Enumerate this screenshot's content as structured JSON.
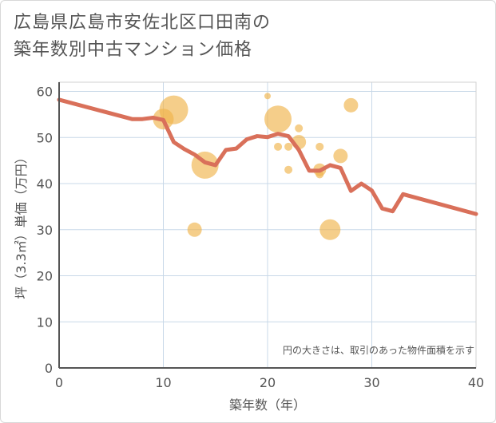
{
  "title_line1": "広島県広島市安佐北区口田南の",
  "title_line2": "築年数別中古マンション価格",
  "chart_data": {
    "type": "scatter+line",
    "xlabel": "築年数（年）",
    "ylabel": "坪（3.3㎡）単価（万円）",
    "xlim": [
      0,
      40
    ],
    "ylim": [
      0,
      62
    ],
    "xticks": [
      0,
      10,
      20,
      30,
      40
    ],
    "yticks": [
      0,
      10,
      20,
      30,
      40,
      50,
      60
    ],
    "grid": true,
    "note": "円の大きさは、取引のあった物件面積を示す",
    "colors": {
      "bubble": "#f0b44c",
      "line": "#d9705a",
      "grid": "#c8d8e8",
      "axis": "#555555"
    },
    "bubbles": [
      {
        "x": 10,
        "y": 54,
        "size": 13
      },
      {
        "x": 11,
        "y": 56,
        "size": 18
      },
      {
        "x": 13,
        "y": 30,
        "size": 9
      },
      {
        "x": 14,
        "y": 44,
        "size": 17
      },
      {
        "x": 20,
        "y": 59,
        "size": 4
      },
      {
        "x": 21,
        "y": 54,
        "size": 17
      },
      {
        "x": 21,
        "y": 48,
        "size": 5
      },
      {
        "x": 22,
        "y": 48,
        "size": 5
      },
      {
        "x": 22,
        "y": 43,
        "size": 5
      },
      {
        "x": 23,
        "y": 52,
        "size": 5
      },
      {
        "x": 23,
        "y": 49,
        "size": 9
      },
      {
        "x": 25,
        "y": 48,
        "size": 5
      },
      {
        "x": 25,
        "y": 43,
        "size": 8
      },
      {
        "x": 25,
        "y": 42,
        "size": 5
      },
      {
        "x": 26,
        "y": 30,
        "size": 13
      },
      {
        "x": 27,
        "y": 46,
        "size": 9
      },
      {
        "x": 28,
        "y": 57,
        "size": 9
      }
    ],
    "line": {
      "x": [
        0,
        7,
        8,
        9,
        10,
        11,
        12,
        13,
        14,
        15,
        16,
        17,
        18,
        19,
        20,
        21,
        22,
        23,
        24,
        25,
        26,
        27,
        28,
        29,
        30,
        31,
        32,
        33,
        40
      ],
      "y": [
        58.2,
        54.0,
        54.0,
        54.3,
        53.8,
        49.0,
        47.5,
        46.3,
        44.6,
        44.0,
        47.3,
        47.6,
        49.6,
        50.3,
        50.1,
        50.8,
        50.3,
        47.3,
        42.8,
        42.8,
        44.0,
        43.4,
        38.4,
        40.0,
        38.5,
        34.6,
        34.0,
        37.7,
        33.4
      ]
    }
  }
}
